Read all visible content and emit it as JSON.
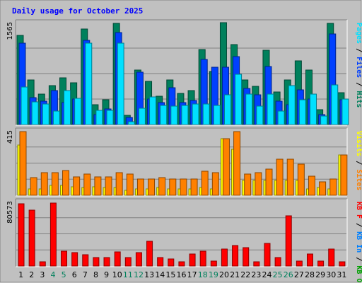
{
  "chart_data": {
    "type": "bar",
    "title": "Daily usage for October 2025",
    "categories": [
      "1",
      "2",
      "3",
      "4",
      "5",
      "6",
      "7",
      "8",
      "9",
      "10",
      "11",
      "12",
      "13",
      "14",
      "15",
      "16",
      "17",
      "18",
      "19",
      "20",
      "21",
      "22",
      "23",
      "24",
      "25",
      "26",
      "27",
      "28",
      "29",
      "30",
      "31"
    ],
    "weekend_days": [
      "4",
      "5",
      "11",
      "12",
      "18",
      "19",
      "25",
      "26"
    ],
    "panels": [
      {
        "name": "pages-files-hits",
        "ymax_label": "1565",
        "ylim": [
          0,
          1565
        ],
        "legend": [
          "Pages",
          "Files",
          "Hits"
        ],
        "series": [
          {
            "name": "Hits",
            "color": "#00805c",
            "values": [
              1372,
              683,
              467,
              602,
              714,
              640,
              1468,
              303,
              378,
              1550,
              146,
              838,
              661,
              433,
              683,
              482,
              519,
              1152,
              813,
              1565,
              1226,
              683,
              590,
              1140,
              503,
              683,
              977,
              839,
              227,
              1550,
              491
            ]
          },
          {
            "name": "Files",
            "color": "#0040ff",
            "values": [
              1250,
              415,
              356,
              518,
              342,
              392,
              1290,
              150,
              243,
              1418,
              112,
              802,
              393,
              341,
              560,
              333,
              374,
              1001,
              882,
              880,
              1045,
              550,
              457,
              896,
              359,
              300,
              532,
              393,
              149,
              1392,
              382
            ]
          },
          {
            "name": "Pages",
            "color": "#00e0ff",
            "values": [
              575,
              347,
              319,
              208,
              520,
              405,
              1245,
              216,
              212,
              1245,
              40,
              252,
              424,
              294,
              280,
              298,
              312,
              319,
              294,
              454,
              768,
              465,
              288,
              463,
              205,
              597,
              375,
              464,
              127,
              612,
              386
            ]
          }
        ]
      },
      {
        "name": "visits-sites",
        "ymax_label": "415",
        "ylim": [
          0,
          415
        ],
        "legend": [
          "Visits",
          "Sites"
        ],
        "series": [
          {
            "name": "Visits",
            "color": "#ffff00",
            "values": [
              323,
              41,
              41,
              65,
              65,
              56,
              48,
              56,
              48,
              48,
              32,
              41,
              41,
              48,
              41,
              41,
              41,
              48,
              41,
              367,
              298,
              97,
              97,
              97,
              97,
              97,
              97,
              41,
              48,
              41,
              262
            ]
          },
          {
            "name": "Sites",
            "color": "#ff8000",
            "values": [
              409,
              115,
              145,
              145,
              160,
              118,
              137,
              118,
              118,
              145,
              137,
              107,
              107,
              115,
              107,
              107,
              107,
              157,
              145,
              367,
              409,
              137,
              145,
              167,
              233,
              233,
              201,
              125,
              88,
              107,
              262
            ]
          }
        ]
      },
      {
        "name": "kb",
        "ymax_label": "80573",
        "ylim": [
          0,
          80573
        ],
        "legend": [
          "KB F",
          "KB In",
          "KB Out"
        ],
        "series": [
          {
            "name": "KB F",
            "color": "#ff0000",
            "values": [
              78000,
              70000,
              5000,
              78500,
              19000,
              17000,
              14000,
              11000,
              11000,
              18000,
              11000,
              17000,
              31000,
              11000,
              9000,
              5000,
              15000,
              19000,
              6000,
              21000,
              26000,
              23000,
              5000,
              28000,
              11000,
              63000,
              6000,
              15000,
              6000,
              21000,
              5000
            ]
          }
        ]
      }
    ]
  }
}
